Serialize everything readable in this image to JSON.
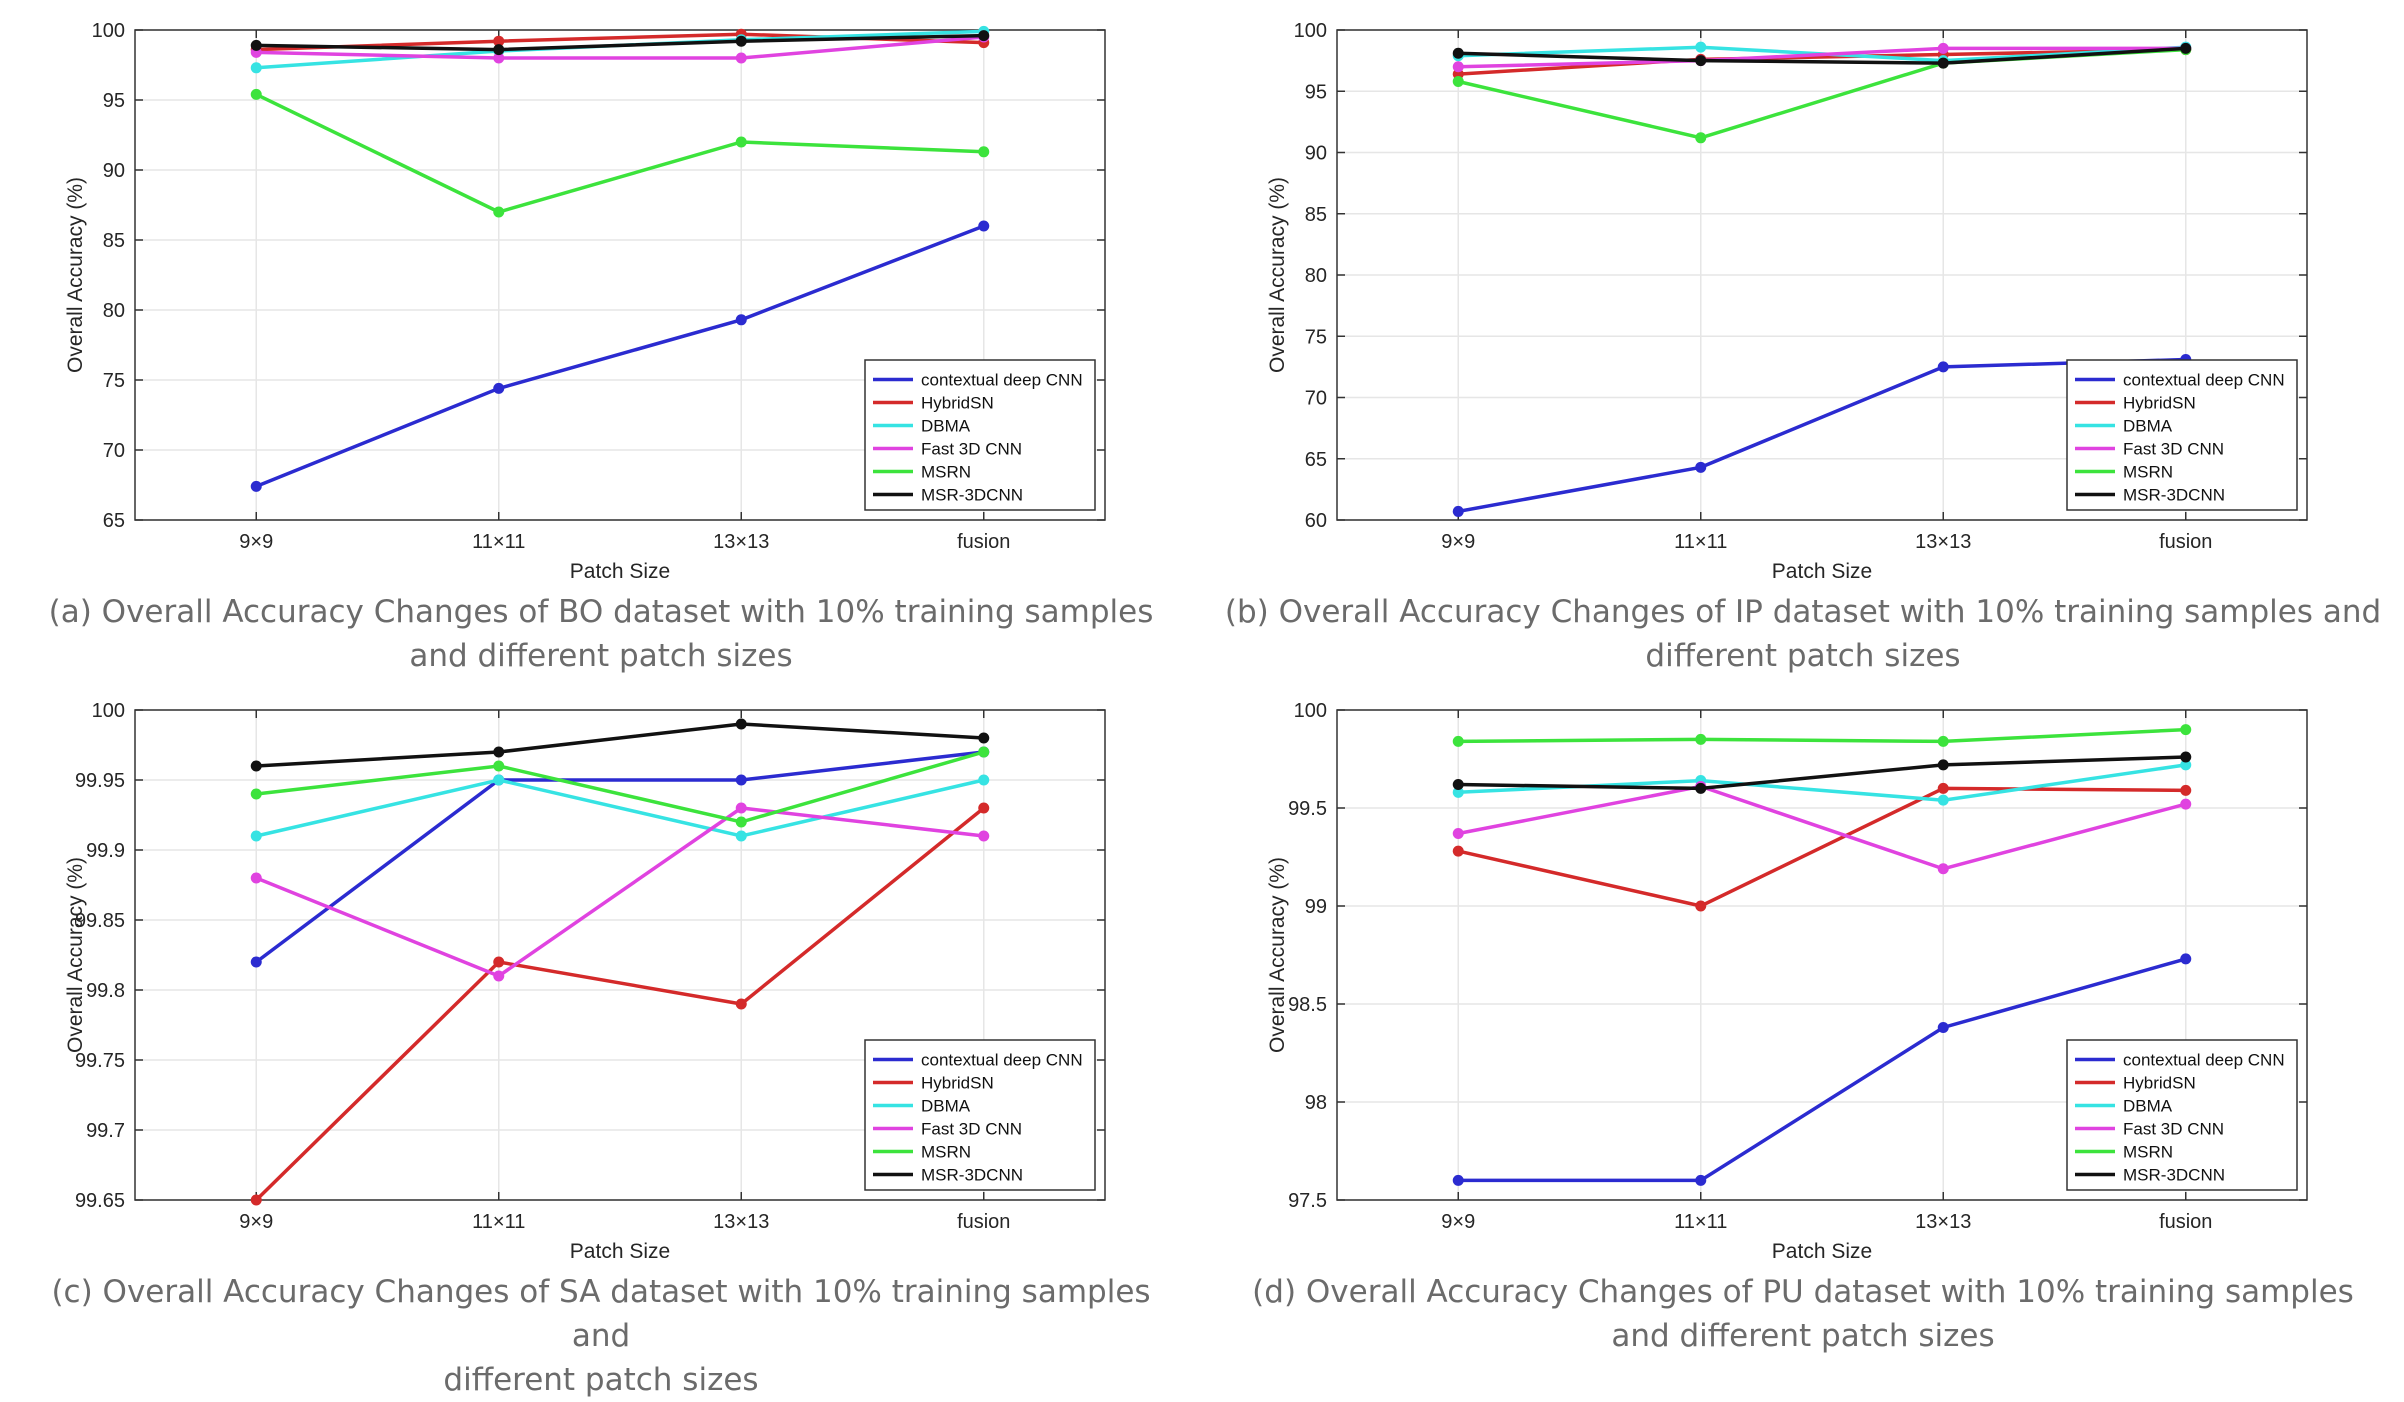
{
  "colors": {
    "contextual deep CNN": "#2b2bd0",
    "HybridSN": "#d42a2a",
    "DBMA": "#36e3e3",
    "Fast 3D CNN": "#e043e0",
    "MSRN": "#3ce33c",
    "MSR-3DCNN": "#111111"
  },
  "chart_data": [
    {
      "id": "a",
      "type": "line",
      "xlabel": "Patch Size",
      "ylabel": "Overall Accuracy (%)",
      "categories": [
        "9×9",
        "11×11",
        "13×13",
        "fusion"
      ],
      "ylim": [
        65,
        100
      ],
      "yticks": [
        "65",
        "70",
        "75",
        "80",
        "85",
        "90",
        "95",
        "100"
      ],
      "ytick_values": [
        65,
        70,
        75,
        80,
        85,
        90,
        95,
        100
      ],
      "legend": "bottom-right",
      "series": [
        {
          "name": "contextual deep CNN",
          "values": [
            67.4,
            74.4,
            79.3,
            86.0
          ]
        },
        {
          "name": "HybridSN",
          "values": [
            98.6,
            99.2,
            99.7,
            99.1
          ]
        },
        {
          "name": "DBMA",
          "values": [
            97.3,
            98.5,
            99.3,
            99.9
          ]
        },
        {
          "name": "Fast 3D CNN",
          "values": [
            98.4,
            98.0,
            98.0,
            99.5
          ]
        },
        {
          "name": "MSRN",
          "values": [
            95.4,
            87.0,
            92.0,
            91.3
          ]
        },
        {
          "name": "MSR-3DCNN",
          "values": [
            98.9,
            98.6,
            99.2,
            99.6
          ]
        }
      ],
      "caption_lines": [
        "(a) Overall Accuracy Changes of BO dataset with 10% training samples",
        "and different patch sizes"
      ]
    },
    {
      "id": "b",
      "type": "line",
      "xlabel": "Patch Size",
      "ylabel": "Overall Accuracy (%)",
      "categories": [
        "9×9",
        "11×11",
        "13×13",
        "fusion"
      ],
      "ylim": [
        60,
        100
      ],
      "yticks": [
        "60",
        "65",
        "70",
        "75",
        "80",
        "85",
        "90",
        "95",
        "100"
      ],
      "ytick_values": [
        60,
        65,
        70,
        75,
        80,
        85,
        90,
        95,
        100
      ],
      "legend": "bottom-right",
      "series": [
        {
          "name": "contextual deep CNN",
          "values": [
            60.7,
            64.3,
            72.5,
            73.1
          ]
        },
        {
          "name": "HybridSN",
          "values": [
            96.4,
            97.6,
            98.0,
            98.4
          ]
        },
        {
          "name": "DBMA",
          "values": [
            97.9,
            98.6,
            97.5,
            98.6
          ]
        },
        {
          "name": "Fast 3D CNN",
          "values": [
            97.0,
            97.5,
            98.5,
            98.5
          ]
        },
        {
          "name": "MSRN",
          "values": [
            95.8,
            91.2,
            97.3,
            98.4
          ]
        },
        {
          "name": "MSR-3DCNN",
          "values": [
            98.1,
            97.5,
            97.3,
            98.5
          ]
        }
      ],
      "caption_lines": [
        "(b) Overall Accuracy Changes of IP dataset with 10% training samples and",
        "different patch sizes"
      ]
    },
    {
      "id": "c",
      "type": "line",
      "xlabel": "Patch Size",
      "ylabel": "Overall Accuracy (%)",
      "categories": [
        "9×9",
        "11×11",
        "13×13",
        "fusion"
      ],
      "ylim": [
        99.65,
        100
      ],
      "yticks": [
        "99.65",
        "99.7",
        "99.75",
        "99.8",
        "99.85",
        "99.9",
        "99.95",
        "100"
      ],
      "ytick_values": [
        99.65,
        99.7,
        99.75,
        99.8,
        99.85,
        99.9,
        99.95,
        100
      ],
      "legend": "bottom-right",
      "series": [
        {
          "name": "contextual deep CNN",
          "values": [
            99.82,
            99.95,
            99.95,
            99.97
          ]
        },
        {
          "name": "HybridSN",
          "values": [
            99.65,
            99.82,
            99.79,
            99.93
          ]
        },
        {
          "name": "DBMA",
          "values": [
            99.91,
            99.95,
            99.91,
            99.95
          ]
        },
        {
          "name": "Fast 3D CNN",
          "values": [
            99.88,
            99.81,
            99.93,
            99.91
          ]
        },
        {
          "name": "MSRN",
          "values": [
            99.94,
            99.96,
            99.92,
            99.97
          ]
        },
        {
          "name": "MSR-3DCNN",
          "values": [
            99.96,
            99.97,
            99.99,
            99.98
          ]
        }
      ],
      "caption_lines": [
        "(c) Overall Accuracy Changes of SA dataset with 10% training samples and",
        "different patch sizes"
      ]
    },
    {
      "id": "d",
      "type": "line",
      "xlabel": "Patch Size",
      "ylabel": "Overall Accuracy (%)",
      "categories": [
        "9×9",
        "11×11",
        "13×13",
        "fusion"
      ],
      "ylim": [
        97.5,
        100
      ],
      "yticks": [
        "97.5",
        "98",
        "98.5",
        "99",
        "99.5",
        "100"
      ],
      "ytick_values": [
        97.5,
        98,
        98.5,
        99,
        99.5,
        100
      ],
      "legend": "bottom-right",
      "series": [
        {
          "name": "contextual deep CNN",
          "values": [
            97.6,
            97.6,
            98.38,
            98.73
          ]
        },
        {
          "name": "HybridSN",
          "values": [
            99.28,
            99.0,
            99.6,
            99.59
          ]
        },
        {
          "name": "DBMA",
          "values": [
            99.58,
            99.64,
            99.54,
            99.72
          ]
        },
        {
          "name": "Fast 3D CNN",
          "values": [
            99.37,
            99.61,
            99.19,
            99.52
          ]
        },
        {
          "name": "MSRN",
          "values": [
            99.84,
            99.85,
            99.84,
            99.9
          ]
        },
        {
          "name": "MSR-3DCNN",
          "values": [
            99.62,
            99.6,
            99.72,
            99.76
          ]
        }
      ],
      "caption_lines": [
        "(d) Overall Accuracy Changes of PU dataset with 10% training samples",
        "and different patch sizes"
      ]
    }
  ]
}
